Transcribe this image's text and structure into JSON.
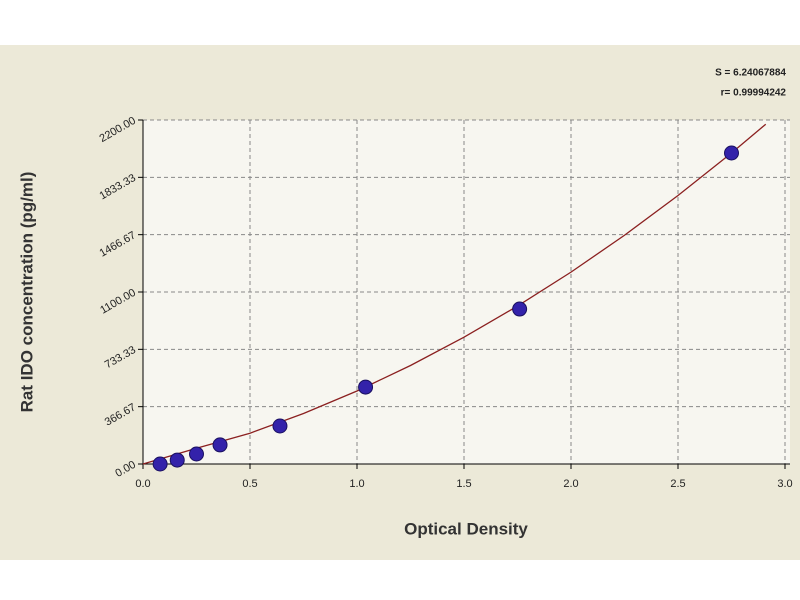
{
  "chart_data": {
    "type": "scatter",
    "xlabel": "Optical Density",
    "ylabel": "Rat IDO concentration (pg/ml)",
    "annotations": [
      "S = 6.24067884",
      "r= 0.99994242"
    ],
    "x": [
      0.08,
      0.16,
      0.25,
      0.36,
      0.64,
      1.04,
      1.76,
      2.75
    ],
    "values": [
      0,
      25,
      64,
      122,
      243,
      492,
      991,
      1989
    ],
    "color": "#3322aa",
    "fit": {
      "x": [
        0,
        0.25,
        0.5,
        0.75,
        1.0,
        1.25,
        1.5,
        1.75,
        2.0,
        2.25,
        2.5,
        2.75,
        2.91
      ],
      "values": [
        0,
        101,
        197,
        323,
        467,
        630,
        811,
        1010,
        1227,
        1463,
        1717,
        1989,
        2173
      ],
      "color": "#8b2020"
    },
    "xlim": [
      0,
      3.0
    ],
    "ylim": [
      0,
      2200
    ],
    "xticks": [
      {
        "value": 0,
        "label": "0.0"
      },
      0.5,
      {
        "value": 1,
        "label": "1.0"
      },
      1.5,
      {
        "value": 2,
        "label": "2.0"
      },
      2.5,
      {
        "value": 3,
        "label": "3.0"
      }
    ],
    "yticks": [
      {
        "value": 0,
        "label": "0.00"
      },
      366.67,
      733.33,
      {
        "value": 1100,
        "label": "1100.00"
      },
      1466.67,
      1833.33,
      {
        "value": 2200,
        "label": "2200.00"
      }
    ],
    "grid": true
  }
}
